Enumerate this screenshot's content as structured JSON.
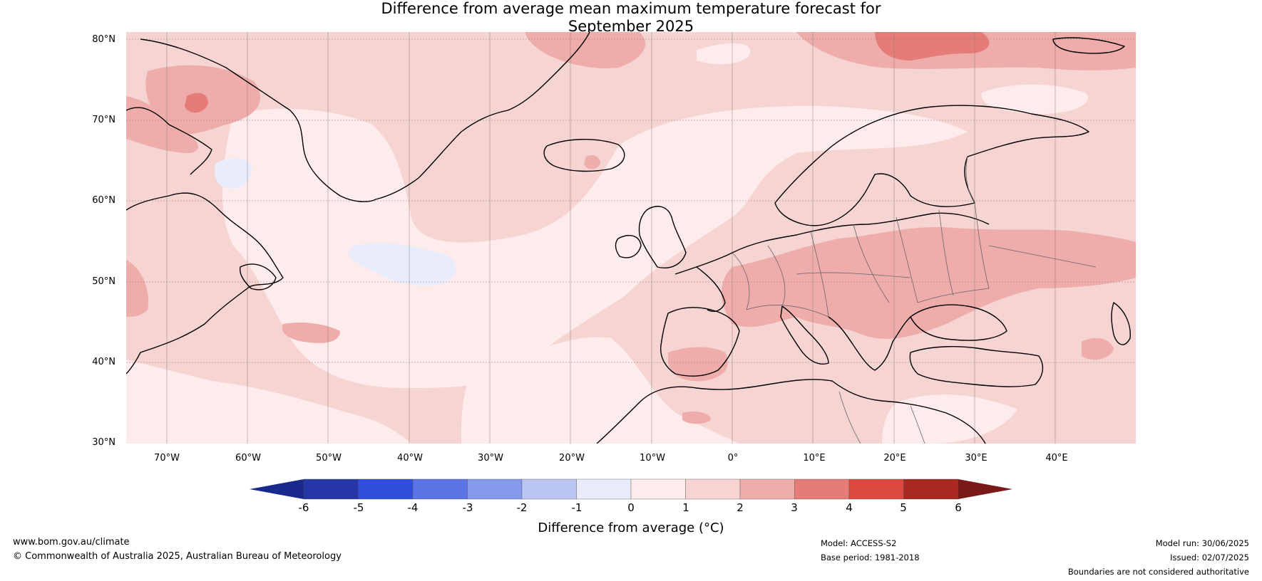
{
  "title_line1": "Difference from average mean maximum temperature forecast for",
  "title_line2": "September 2025",
  "lat_labels": [
    "80°N",
    "70°N",
    "60°N",
    "50°N",
    "40°N",
    "30°N"
  ],
  "lon_labels": [
    "70°W",
    "60°W",
    "50°W",
    "40°W",
    "30°W",
    "20°W",
    "10°W",
    "0°",
    "10°E",
    "20°E",
    "30°E",
    "40°E"
  ],
  "map_extent": {
    "lon": [
      -75,
      50
    ],
    "lat": [
      30,
      81
    ]
  },
  "colorbar": {
    "ticks": [
      "-6",
      "-5",
      "-4",
      "-3",
      "-2",
      "-1",
      "0",
      "1",
      "2",
      "3",
      "4",
      "5",
      "6"
    ],
    "colors": [
      "#2536a8",
      "#2f4fdc",
      "#5b75e6",
      "#8599ec",
      "#bcc6f3",
      "#e8ecfb",
      "#fdeceb",
      "#f5d4d2",
      "#eeacaa",
      "#e57c77",
      "#da4a40",
      "#ab2820"
    ],
    "under_color": "#1a2a8c",
    "over_color": "#7a1a18",
    "label": "Difference from average (°C)"
  },
  "footer": {
    "website": "www.bom.gov.au/climate",
    "copyright": "© Commonwealth of Australia 2025, Australian Bureau of Meteorology",
    "model": "Model: ACCESS-S2",
    "base_period": "Base period: 1981-2018",
    "model_run": "Model run: 30/06/2025",
    "issued": "Issued: 02/07/2025",
    "disclaimer": "Boundaries are not considered authoritative"
  }
}
